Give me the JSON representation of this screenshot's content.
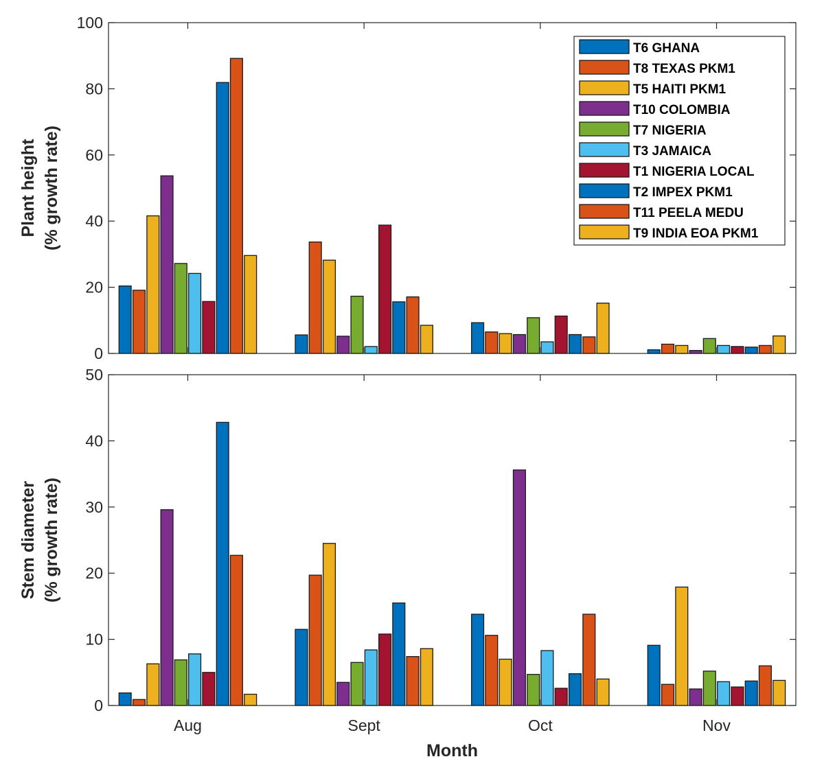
{
  "chart_data": [
    {
      "type": "bar",
      "id": "plant-height",
      "title": "",
      "xlabel": "",
      "ylabel": [
        "Plant height",
        "(% growth rate)"
      ],
      "ylim": [
        0,
        100
      ],
      "yticks": [
        0,
        20,
        40,
        60,
        80,
        100
      ],
      "xlim": [
        0.55,
        4.45
      ],
      "grid": false,
      "categories": [
        "Aug",
        "Sept",
        "Oct",
        "Nov"
      ],
      "series": [
        {
          "name": "T6 GHANA",
          "color": "#0072BD",
          "values": [
            20.4,
            5.6,
            9.3,
            1.1
          ]
        },
        {
          "name": "T8 TEXAS PKM1",
          "color": "#D95319",
          "values": [
            19.1,
            33.7,
            6.5,
            2.8
          ]
        },
        {
          "name": "T5 HAITI PKM1",
          "color": "#EDB120",
          "values": [
            41.6,
            28.2,
            6.0,
            2.4
          ]
        },
        {
          "name": "T10 COLOMBIA",
          "color": "#7E2F8E",
          "values": [
            53.7,
            5.2,
            5.7,
            0.9
          ]
        },
        {
          "name": "T7 NIGERIA",
          "color": "#77AC30",
          "values": [
            27.2,
            17.3,
            10.8,
            4.5
          ]
        },
        {
          "name": "T3 JAMAICA",
          "color": "#4DBEEE",
          "values": [
            24.2,
            2.1,
            3.5,
            2.4
          ]
        },
        {
          "name": "T1 NIGERIA LOCAL",
          "color": "#A2142F",
          "values": [
            15.7,
            38.8,
            11.3,
            2.1
          ]
        },
        {
          "name": "T2 IMPEX PKM1",
          "color": "#0072BD",
          "values": [
            81.9,
            15.6,
            5.7,
            1.9
          ]
        },
        {
          "name": "T11 PEELA MEDU",
          "color": "#D95319",
          "values": [
            89.2,
            17.1,
            5.0,
            2.4
          ]
        },
        {
          "name": "T9 INDIA EOA PKM1",
          "color": "#EDB120",
          "values": [
            29.6,
            8.5,
            15.2,
            5.3
          ]
        }
      ],
      "legend": {
        "placement": "top-right",
        "show": true
      }
    },
    {
      "type": "bar",
      "id": "stem-diameter",
      "title": "",
      "xlabel": "Month",
      "ylabel": [
        "Stem diameter",
        "(% growth rate)"
      ],
      "ylim": [
        0,
        50
      ],
      "yticks": [
        0,
        10,
        20,
        30,
        40,
        50
      ],
      "xlim": [
        0.55,
        4.45
      ],
      "grid": false,
      "categories": [
        "Aug",
        "Sept",
        "Oct",
        "Nov"
      ],
      "series": [
        {
          "name": "T6 GHANA",
          "color": "#0072BD",
          "values": [
            1.9,
            11.5,
            13.8,
            9.1
          ]
        },
        {
          "name": "T8 TEXAS PKM1",
          "color": "#D95319",
          "values": [
            0.9,
            19.7,
            10.6,
            3.2
          ]
        },
        {
          "name": "T5 HAITI PKM1",
          "color": "#EDB120",
          "values": [
            6.3,
            24.5,
            7.0,
            17.9
          ]
        },
        {
          "name": "T10 COLOMBIA",
          "color": "#7E2F8E",
          "values": [
            29.6,
            3.5,
            35.6,
            2.5
          ]
        },
        {
          "name": "T7 NIGERIA",
          "color": "#77AC30",
          "values": [
            6.9,
            6.5,
            4.7,
            5.2
          ]
        },
        {
          "name": "T3 JAMAICA",
          "color": "#4DBEEE",
          "values": [
            7.8,
            8.4,
            8.3,
            3.6
          ]
        },
        {
          "name": "T1 NIGERIA LOCAL",
          "color": "#A2142F",
          "values": [
            5.0,
            10.8,
            2.6,
            2.8
          ]
        },
        {
          "name": "T2 IMPEX PKM1",
          "color": "#0072BD",
          "values": [
            42.8,
            15.5,
            4.8,
            3.7
          ]
        },
        {
          "name": "T11 PEELA MEDU",
          "color": "#D95319",
          "values": [
            22.7,
            7.4,
            13.8,
            6.0
          ]
        },
        {
          "name": "T9 INDIA EOA PKM1",
          "color": "#EDB120",
          "values": [
            1.7,
            8.6,
            4.0,
            3.8
          ]
        }
      ],
      "legend": {
        "show": false
      }
    }
  ]
}
